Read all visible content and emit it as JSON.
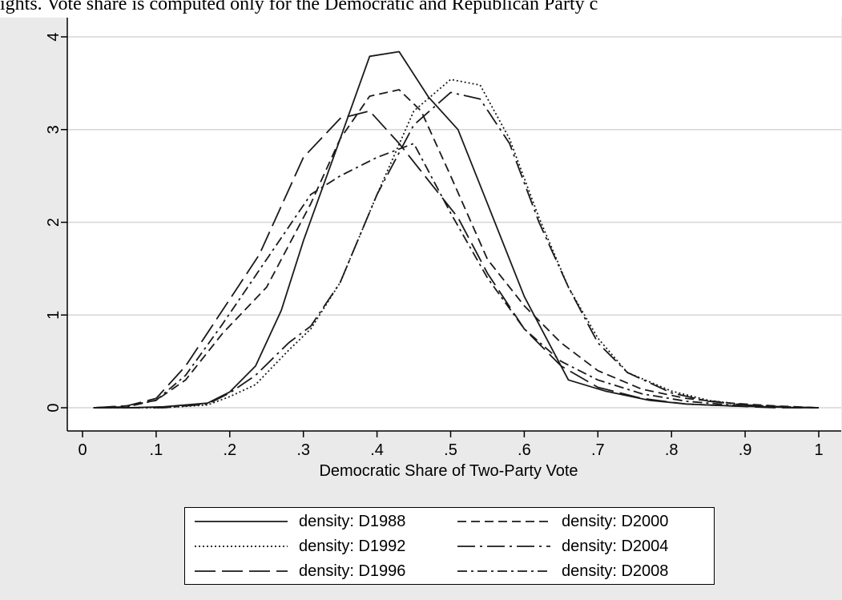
{
  "caption": "ights. Vote share is computed only for the Democratic and Republican Party c",
  "chart_data": {
    "type": "line",
    "xlabel": "Democratic Share of Two-Party Vote",
    "ylabel": "",
    "title": "",
    "xlim": [
      0,
      1
    ],
    "ylim": [
      0,
      4
    ],
    "x_ticks": [
      "0",
      ".1",
      ".2",
      ".3",
      ".4",
      ".5",
      ".6",
      ".7",
      ".8",
      ".9",
      "1"
    ],
    "y_ticks": [
      "0",
      "1",
      "2",
      "3",
      "4"
    ],
    "grid": "horizontal",
    "legend_position": "bottom",
    "series": [
      {
        "name": "density: D1988",
        "dash": "solid",
        "x": [
          0.015,
          0.06,
          0.11,
          0.17,
          0.2,
          0.235,
          0.27,
          0.3,
          0.35,
          0.39,
          0.43,
          0.47,
          0.51,
          0.55,
          0.6,
          0.66,
          0.71,
          0.77,
          0.82,
          0.88,
          0.93,
          0.97,
          1.0
        ],
        "values": [
          0,
          0,
          0.01,
          0.05,
          0.17,
          0.45,
          1.05,
          1.8,
          2.9,
          3.79,
          3.84,
          3.35,
          3.0,
          2.2,
          1.2,
          0.3,
          0.18,
          0.08,
          0.04,
          0.02,
          0.01,
          0,
          0
        ]
      },
      {
        "name": "density: D1992",
        "dash": "dotted",
        "x": [
          0.015,
          0.06,
          0.11,
          0.17,
          0.2,
          0.235,
          0.28,
          0.31,
          0.35,
          0.4,
          0.45,
          0.5,
          0.54,
          0.58,
          0.62,
          0.66,
          0.7,
          0.74,
          0.8,
          0.85,
          0.9,
          0.95,
          1.0
        ],
        "values": [
          0,
          0,
          0,
          0.03,
          0.12,
          0.25,
          0.62,
          0.85,
          1.35,
          2.3,
          3.2,
          3.54,
          3.48,
          2.9,
          2.05,
          1.3,
          0.75,
          0.38,
          0.18,
          0.08,
          0.03,
          0.01,
          0
        ]
      },
      {
        "name": "density: D1996",
        "dash": "longdash",
        "x": [
          0.015,
          0.06,
          0.1,
          0.14,
          0.19,
          0.24,
          0.3,
          0.35,
          0.39,
          0.43,
          0.47,
          0.51,
          0.55,
          0.6,
          0.65,
          0.7,
          0.76,
          0.82,
          0.88,
          0.94,
          1.0
        ],
        "values": [
          0,
          0.02,
          0.1,
          0.45,
          1.05,
          1.65,
          2.7,
          3.12,
          3.2,
          2.85,
          2.45,
          2.05,
          1.45,
          0.85,
          0.45,
          0.22,
          0.1,
          0.04,
          0.02,
          0,
          0
        ]
      },
      {
        "name": "density: D2000",
        "dash": "dashed",
        "x": [
          0.015,
          0.06,
          0.1,
          0.14,
          0.19,
          0.25,
          0.31,
          0.35,
          0.39,
          0.43,
          0.46,
          0.5,
          0.55,
          0.6,
          0.65,
          0.7,
          0.76,
          0.82,
          0.88,
          0.94,
          1.0
        ],
        "values": [
          0,
          0.02,
          0.08,
          0.3,
          0.8,
          1.3,
          2.2,
          2.9,
          3.36,
          3.43,
          3.2,
          2.5,
          1.6,
          1.1,
          0.7,
          0.4,
          0.2,
          0.1,
          0.05,
          0.02,
          0
        ]
      },
      {
        "name": "density: D2004",
        "dash": "longdash-dot",
        "x": [
          0.015,
          0.06,
          0.11,
          0.17,
          0.2,
          0.235,
          0.28,
          0.31,
          0.35,
          0.4,
          0.45,
          0.5,
          0.54,
          0.58,
          0.62,
          0.66,
          0.7,
          0.74,
          0.8,
          0.85,
          0.9,
          0.95,
          1.0
        ],
        "values": [
          0,
          0,
          0,
          0.04,
          0.16,
          0.35,
          0.7,
          0.88,
          1.35,
          2.3,
          3.05,
          3.4,
          3.33,
          2.85,
          2.0,
          1.3,
          0.7,
          0.38,
          0.16,
          0.07,
          0.03,
          0.01,
          0
        ]
      },
      {
        "name": "density: D2008",
        "dash": "dash-dot",
        "x": [
          0.015,
          0.06,
          0.1,
          0.14,
          0.19,
          0.25,
          0.31,
          0.35,
          0.4,
          0.45,
          0.5,
          0.55,
          0.6,
          0.65,
          0.7,
          0.76,
          0.82,
          0.88,
          0.94,
          1.0
        ],
        "values": [
          0,
          0.01,
          0.08,
          0.35,
          0.9,
          1.6,
          2.3,
          2.5,
          2.7,
          2.85,
          2.1,
          1.4,
          0.85,
          0.5,
          0.3,
          0.15,
          0.07,
          0.03,
          0.01,
          0
        ]
      }
    ]
  }
}
